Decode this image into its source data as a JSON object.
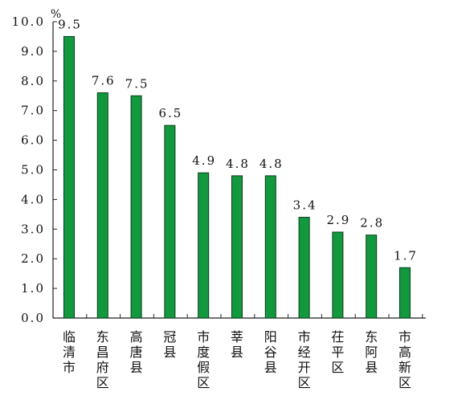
{
  "chart_data": {
    "type": "bar",
    "unit": "%",
    "categories": [
      "临清市",
      "东昌府区",
      "高唐县",
      "冠县",
      "市度假区",
      "莘县",
      "阳谷县",
      "市经开区",
      "茌平区",
      "东阿县",
      "市高新区"
    ],
    "values": [
      9.5,
      7.6,
      7.5,
      6.5,
      4.9,
      4.8,
      4.8,
      3.4,
      2.9,
      2.8,
      1.7
    ],
    "value_labels": [
      "9.5",
      "7.6",
      "7.5",
      "6.5",
      "4.9",
      "4.8",
      "4.8",
      "3.4",
      "2.9",
      "2.8",
      "1.7"
    ],
    "y_ticks": [
      "0.0",
      "1.0",
      "2.0",
      "3.0",
      "4.0",
      "5.0",
      "6.0",
      "7.0",
      "8.0",
      "9.0",
      "10.0"
    ],
    "ylim": [
      0,
      10
    ],
    "grid": false,
    "colors": {
      "bar_fill": "#119a3d",
      "bar_stroke": "#0a3d1a",
      "axis": "#222222"
    }
  }
}
